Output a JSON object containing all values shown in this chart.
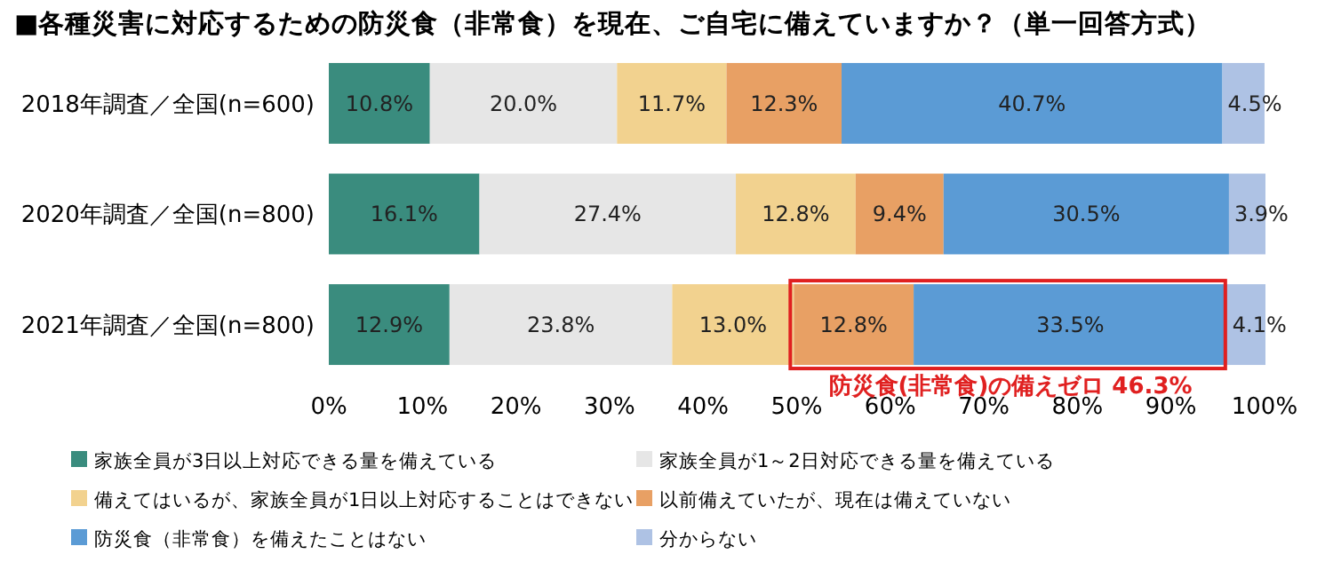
{
  "chart_data": {
    "type": "bar",
    "orientation": "horizontal",
    "stacked": true,
    "title": "■各種災害に対応するための防災食（非常食）を現在、ご自宅に備えていますか？（単一回答方式）",
    "categories": [
      "2018年調査／全国(n=600)",
      "2020年調査／全国(n=800)",
      "2021年調査／全国(n=800)"
    ],
    "series": [
      {
        "name": "家族全員が3日以上対応できる量を備えている",
        "color": "#3a8c7e",
        "values": [
          10.8,
          16.1,
          12.9
        ],
        "value_labels": [
          "10.8%",
          "16.1%",
          "12.9%"
        ]
      },
      {
        "name": "家族全員が1～2日対応できる量を備えている",
        "color": "#e6e6e6",
        "values": [
          20.0,
          27.4,
          23.8
        ],
        "value_labels": [
          "20.0%",
          "27.4%",
          "23.8%"
        ]
      },
      {
        "name": "備えてはいるが、家族全員が1日以上対応することはできない",
        "color": "#f2d28f",
        "values": [
          11.7,
          12.8,
          13.0
        ],
        "value_labels": [
          "11.7%",
          "12.8%",
          "13.0%"
        ]
      },
      {
        "name": "以前備えていたが、現在は備えていない",
        "color": "#e8a064",
        "values": [
          12.3,
          9.4,
          12.8
        ],
        "value_labels": [
          "12.3%",
          "9.4%",
          "12.8%"
        ]
      },
      {
        "name": "防災食（非常食）を備えたことはない",
        "color": "#5b9bd5",
        "values": [
          40.7,
          30.5,
          33.5
        ],
        "value_labels": [
          "40.7%",
          "30.5%",
          "33.5%"
        ]
      },
      {
        "name": "分からない",
        "color": "#aec2e4",
        "values": [
          4.5,
          3.9,
          4.1
        ],
        "value_labels": [
          "4.5%",
          "3.9%",
          "4.1%"
        ]
      }
    ],
    "xlim": [
      0,
      100.1
    ],
    "xticks": [
      {
        "value": 0,
        "label": "0%"
      },
      {
        "value": 10,
        "label": "10%"
      },
      {
        "value": 20,
        "label": "20%"
      },
      {
        "value": 30,
        "label": "30%"
      },
      {
        "value": 40,
        "label": "40%"
      },
      {
        "value": 50,
        "label": "50%"
      },
      {
        "value": 60,
        "label": "60%"
      },
      {
        "value": 70,
        "label": "70%"
      },
      {
        "value": 80,
        "label": "80%"
      },
      {
        "value": 90,
        "label": "90%"
      },
      {
        "value": 100,
        "label": "100%"
      }
    ],
    "annotations": [
      {
        "text": "防災食(非常食)の備えゼロ 46.3%",
        "x": 72.85,
        "y": "2021年調査／全国(n=800)"
      }
    ],
    "grid": false,
    "legend": "bottom"
  }
}
